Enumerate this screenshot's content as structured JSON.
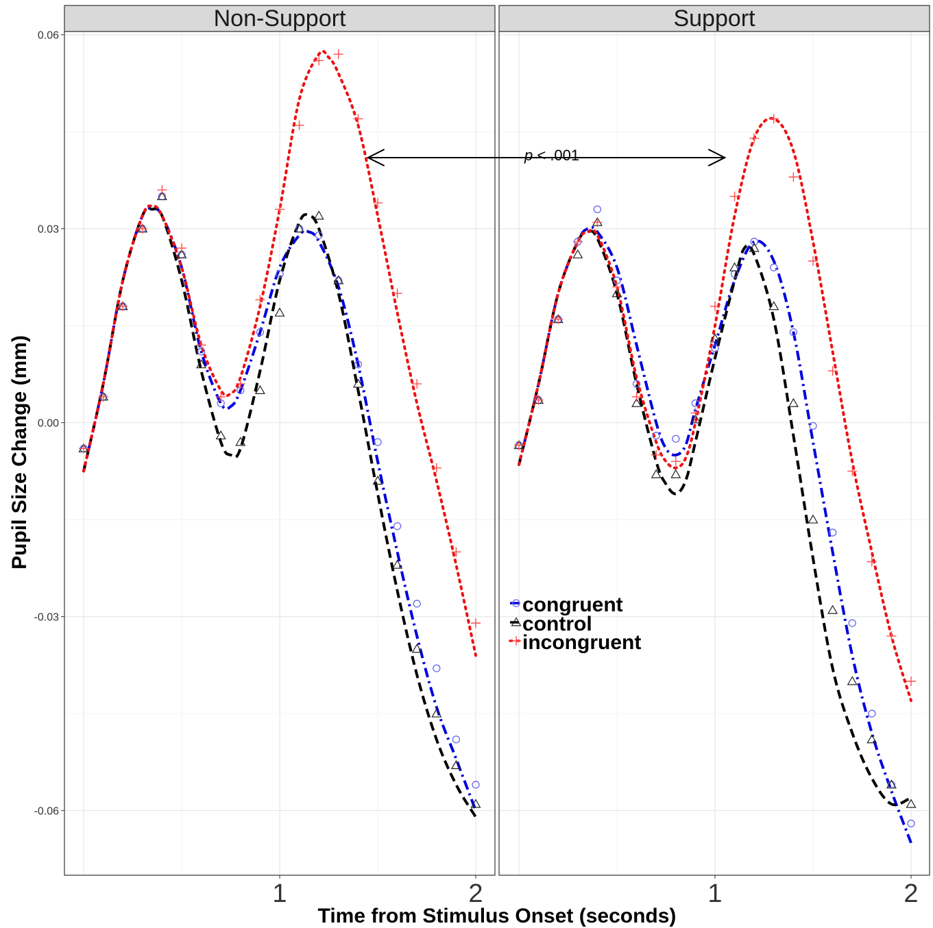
{
  "chart_data": {
    "type": "line",
    "facets": [
      "Non-Support",
      "Support"
    ],
    "xlabel": "Time from Stimulus Onset (seconds)",
    "ylabel": "Pupil Size Change (mm)",
    "xlim": [
      -0.1,
      2.1
    ],
    "ylim": [
      -0.07,
      0.0605
    ],
    "x_ticks": [
      1,
      2
    ],
    "x_tick_labels": [
      "1",
      "2"
    ],
    "y_ticks": [
      -0.06,
      -0.03,
      0.0,
      0.03,
      0.06
    ],
    "y_tick_labels": [
      "-0.06",
      "-0.03",
      "0.00",
      "0.03",
      "0.06"
    ],
    "grid": true,
    "legend": {
      "placement": "inside-left of Support panel",
      "entries": [
        "congruent",
        "control",
        "incongruent"
      ]
    },
    "annotation": {
      "text_italic": "p",
      "text_rest": " < .001",
      "arrow_y": 0.041,
      "arrow_from": {
        "panel": "Non-Support",
        "x": 1.45
      },
      "arrow_to": {
        "panel": "Support",
        "x": 1.05
      }
    },
    "x": [
      0,
      0.1,
      0.2,
      0.3,
      0.4,
      0.5,
      0.6,
      0.7,
      0.8,
      0.9,
      1.0,
      1.1,
      1.2,
      1.3,
      1.4,
      1.5,
      1.6,
      1.7,
      1.8,
      1.9,
      2.0
    ],
    "panels": [
      {
        "name": "Non-Support",
        "series": [
          {
            "name": "congruent",
            "color": "#3333ff",
            "marker": "circle",
            "line": "dot-dash",
            "points": [
              -0.004,
              0.004,
              0.018,
              0.03,
              0.035,
              0.026,
              0.011,
              0.003,
              0.005,
              0.014,
              0.023,
              0.03,
              0.029,
              0.022,
              0.009,
              -0.003,
              -0.016,
              -0.028,
              -0.038,
              -0.049,
              -0.056
            ],
            "fit": [
              [
                0,
                -0.0075
              ],
              [
                0.1,
                0.006
              ],
              [
                0.2,
                0.022
              ],
              [
                0.3,
                0.032
              ],
              [
                0.35,
                0.033
              ],
              [
                0.4,
                0.032
              ],
              [
                0.5,
                0.024
              ],
              [
                0.6,
                0.011
              ],
              [
                0.7,
                0.003
              ],
              [
                0.75,
                0.0025
              ],
              [
                0.8,
                0.005
              ],
              [
                0.9,
                0.014
              ],
              [
                1.0,
                0.024
              ],
              [
                1.1,
                0.029
              ],
              [
                1.15,
                0.0295
              ],
              [
                1.2,
                0.028
              ],
              [
                1.3,
                0.021
              ],
              [
                1.4,
                0.009
              ],
              [
                1.5,
                -0.006
              ],
              [
                1.6,
                -0.02
              ],
              [
                1.7,
                -0.033
              ],
              [
                1.8,
                -0.044
              ],
              [
                1.9,
                -0.052
              ],
              [
                2.0,
                -0.06
              ]
            ]
          },
          {
            "name": "control",
            "color": "#000000",
            "marker": "triangle",
            "line": "dashed",
            "points": [
              -0.004,
              0.004,
              0.018,
              0.03,
              0.035,
              0.026,
              0.009,
              -0.002,
              -0.003,
              0.005,
              0.017,
              0.03,
              0.032,
              0.022,
              0.006,
              -0.009,
              -0.022,
              -0.035,
              -0.045,
              -0.053,
              -0.059
            ],
            "fit": [
              [
                0,
                -0.0075
              ],
              [
                0.1,
                0.006
              ],
              [
                0.2,
                0.022
              ],
              [
                0.3,
                0.032
              ],
              [
                0.35,
                0.033
              ],
              [
                0.4,
                0.032
              ],
              [
                0.5,
                0.022
              ],
              [
                0.6,
                0.008
              ],
              [
                0.7,
                -0.003
              ],
              [
                0.75,
                -0.005
              ],
              [
                0.8,
                -0.004
              ],
              [
                0.9,
                0.008
              ],
              [
                1.0,
                0.022
              ],
              [
                1.1,
                0.031
              ],
              [
                1.15,
                0.032
              ],
              [
                1.2,
                0.03
              ],
              [
                1.3,
                0.02
              ],
              [
                1.4,
                0.005
              ],
              [
                1.5,
                -0.011
              ],
              [
                1.6,
                -0.026
              ],
              [
                1.7,
                -0.039
              ],
              [
                1.8,
                -0.049
              ],
              [
                1.9,
                -0.056
              ],
              [
                2.0,
                -0.061
              ]
            ]
          },
          {
            "name": "incongruent",
            "color": "#ff2a2a",
            "marker": "plus",
            "line": "dotted",
            "points": [
              -0.004,
              0.004,
              0.018,
              0.03,
              0.036,
              0.027,
              0.012,
              0.004,
              0.006,
              0.019,
              0.033,
              0.046,
              0.056,
              0.057,
              0.047,
              0.034,
              0.02,
              0.006,
              -0.007,
              -0.02,
              -0.031
            ],
            "fit": [
              [
                0,
                -0.0075
              ],
              [
                0.1,
                0.006
              ],
              [
                0.2,
                0.022
              ],
              [
                0.3,
                0.032
              ],
              [
                0.35,
                0.0335
              ],
              [
                0.4,
                0.032
              ],
              [
                0.5,
                0.024
              ],
              [
                0.6,
                0.012
              ],
              [
                0.7,
                0.005
              ],
              [
                0.75,
                0.0045
              ],
              [
                0.8,
                0.007
              ],
              [
                0.9,
                0.018
              ],
              [
                1.0,
                0.033
              ],
              [
                1.1,
                0.05
              ],
              [
                1.2,
                0.057
              ],
              [
                1.25,
                0.0565
              ],
              [
                1.3,
                0.054
              ],
              [
                1.4,
                0.046
              ],
              [
                1.5,
                0.032
              ],
              [
                1.6,
                0.017
              ],
              [
                1.7,
                0.003
              ],
              [
                1.8,
                -0.009
              ],
              [
                1.9,
                -0.022
              ],
              [
                2.0,
                -0.036
              ]
            ]
          }
        ]
      },
      {
        "name": "Support",
        "series": [
          {
            "name": "congruent",
            "color": "#3333ff",
            "marker": "circle",
            "line": "dot-dash",
            "points": [
              -0.0035,
              0.0035,
              0.016,
              0.028,
              0.033,
              0.022,
              0.006,
              -0.002,
              -0.0025,
              0.003,
              0.0115,
              0.023,
              0.028,
              0.024,
              0.014,
              -0.0005,
              -0.017,
              -0.031,
              -0.045,
              -0.056,
              -0.062
            ],
            "fit": [
              [
                0,
                -0.0065
              ],
              [
                0.1,
                0.006
              ],
              [
                0.2,
                0.02
              ],
              [
                0.3,
                0.028
              ],
              [
                0.35,
                0.03
              ],
              [
                0.4,
                0.0295
              ],
              [
                0.5,
                0.024
              ],
              [
                0.6,
                0.012
              ],
              [
                0.7,
                0.0
              ],
              [
                0.75,
                -0.004
              ],
              [
                0.8,
                -0.005
              ],
              [
                0.85,
                -0.0035
              ],
              [
                0.9,
                0.002
              ],
              [
                1.0,
                0.012
              ],
              [
                1.1,
                0.022
              ],
              [
                1.2,
                0.028
              ],
              [
                1.3,
                0.025
              ],
              [
                1.4,
                0.014
              ],
              [
                1.5,
                -0.003
              ],
              [
                1.6,
                -0.02
              ],
              [
                1.7,
                -0.036
              ],
              [
                1.8,
                -0.048
              ],
              [
                1.9,
                -0.057
              ],
              [
                2.0,
                -0.065
              ]
            ]
          },
          {
            "name": "control",
            "color": "#000000",
            "marker": "triangle",
            "line": "dashed",
            "points": [
              -0.0035,
              0.0035,
              0.016,
              0.026,
              0.031,
              0.02,
              0.003,
              -0.008,
              -0.008,
              0.0005,
              0.013,
              0.024,
              0.027,
              0.018,
              0.003,
              -0.015,
              -0.029,
              -0.04,
              -0.049,
              -0.056,
              -0.059
            ],
            "fit": [
              [
                0,
                -0.0065
              ],
              [
                0.1,
                0.006
              ],
              [
                0.2,
                0.02
              ],
              [
                0.3,
                0.028
              ],
              [
                0.35,
                0.0295
              ],
              [
                0.4,
                0.0285
              ],
              [
                0.5,
                0.02
              ],
              [
                0.6,
                0.006
              ],
              [
                0.7,
                -0.006
              ],
              [
                0.75,
                -0.0095
              ],
              [
                0.8,
                -0.011
              ],
              [
                0.85,
                -0.009
              ],
              [
                0.9,
                -0.003
              ],
              [
                1.0,
                0.01
              ],
              [
                1.1,
                0.022
              ],
              [
                1.15,
                0.027
              ],
              [
                1.2,
                0.026
              ],
              [
                1.3,
                0.016
              ],
              [
                1.4,
                -0.002
              ],
              [
                1.5,
                -0.021
              ],
              [
                1.6,
                -0.038
              ],
              [
                1.7,
                -0.048
              ],
              [
                1.8,
                -0.055
              ],
              [
                1.9,
                -0.059
              ],
              [
                2.0,
                -0.058
              ]
            ]
          },
          {
            "name": "incongruent",
            "color": "#ff2a2a",
            "marker": "plus",
            "line": "dotted",
            "points": [
              -0.0035,
              0.0035,
              0.016,
              0.028,
              0.031,
              0.021,
              0.004,
              -0.005,
              -0.006,
              0.0015,
              0.018,
              0.035,
              0.044,
              0.047,
              0.038,
              0.025,
              0.008,
              -0.0075,
              -0.0215,
              -0.033,
              -0.04
            ],
            "fit": [
              [
                0,
                -0.0065
              ],
              [
                0.1,
                0.006
              ],
              [
                0.2,
                0.02
              ],
              [
                0.3,
                0.028
              ],
              [
                0.35,
                0.0295
              ],
              [
                0.4,
                0.029
              ],
              [
                0.5,
                0.021
              ],
              [
                0.6,
                0.007
              ],
              [
                0.7,
                -0.003
              ],
              [
                0.75,
                -0.006
              ],
              [
                0.8,
                -0.007
              ],
              [
                0.85,
                -0.0055
              ],
              [
                0.9,
                0.0
              ],
              [
                1.0,
                0.015
              ],
              [
                1.1,
                0.032
              ],
              [
                1.2,
                0.044
              ],
              [
                1.3,
                0.047
              ],
              [
                1.4,
                0.042
              ],
              [
                1.5,
                0.028
              ],
              [
                1.6,
                0.011
              ],
              [
                1.7,
                -0.006
              ],
              [
                1.8,
                -0.02
              ],
              [
                1.9,
                -0.033
              ],
              [
                2.0,
                -0.043
              ]
            ]
          }
        ]
      }
    ]
  }
}
